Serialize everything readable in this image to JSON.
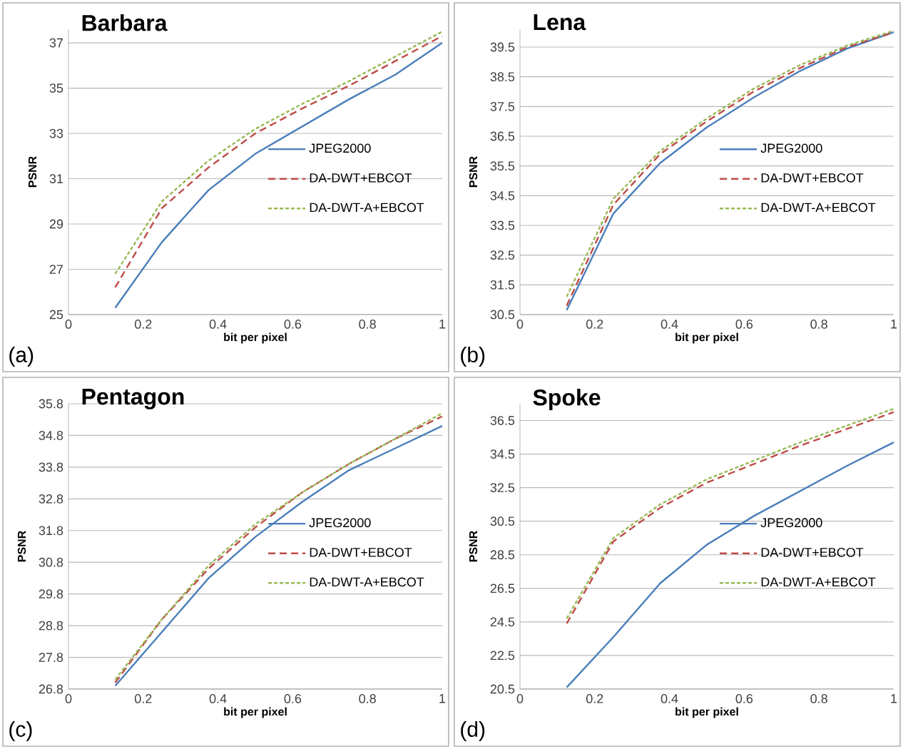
{
  "chart_data": [
    {
      "type": "line",
      "title": "Barbara",
      "xlabel": "bit per pixel",
      "ylabel": "PSNR",
      "annotations": [
        "(a)"
      ],
      "x": [
        0.125,
        0.25,
        0.375,
        0.5,
        0.625,
        0.75,
        0.875,
        1
      ],
      "xlim": [
        0,
        1
      ],
      "ylim": [
        25,
        37.6
      ],
      "xticks": [
        0,
        0.2,
        0.4,
        0.6,
        0.8,
        1
      ],
      "yticks": [
        25,
        27,
        29,
        31,
        33,
        35,
        37
      ],
      "grid": "y",
      "legend": "right",
      "series": [
        {
          "name": "JPEG2000",
          "color": "#4a7ebb",
          "line_style": "solid",
          "values": [
            25.3,
            28.2,
            30.5,
            32.1,
            33.3,
            34.5,
            35.6,
            37.0
          ]
        },
        {
          "name": "DA-DWT+EBCOT",
          "color": "#be4b48",
          "line_style": "dashed",
          "values": [
            26.2,
            29.7,
            31.5,
            33.0,
            34.1,
            35.1,
            36.2,
            37.3
          ]
        },
        {
          "name": "DA-DWT-A+EBCOT",
          "color": "#98b954",
          "line_style": "dotted",
          "values": [
            26.8,
            30.0,
            31.8,
            33.2,
            34.3,
            35.3,
            36.4,
            37.5
          ]
        }
      ]
    },
    {
      "type": "line",
      "title": "Lena",
      "xlabel": "bit per pixel",
      "ylabel": "PSNR",
      "annotations": [
        "(b)"
      ],
      "x": [
        0.125,
        0.25,
        0.375,
        0.5,
        0.625,
        0.75,
        0.875,
        1
      ],
      "xlim": [
        0,
        1
      ],
      "ylim": [
        30.5,
        40.1
      ],
      "xticks": [
        0,
        0.2,
        0.4,
        0.6,
        0.8,
        1
      ],
      "yticks": [
        30.5,
        31.5,
        32.5,
        33.5,
        34.5,
        35.5,
        36.5,
        37.5,
        38.5,
        39.5
      ],
      "grid": "y",
      "legend": "right",
      "series": [
        {
          "name": "JPEG2000",
          "color": "#4a7ebb",
          "line_style": "solid",
          "values": [
            30.65,
            33.9,
            35.6,
            36.8,
            37.8,
            38.7,
            39.45,
            40.0
          ]
        },
        {
          "name": "DA-DWT+EBCOT",
          "color": "#be4b48",
          "line_style": "dashed",
          "values": [
            30.8,
            34.2,
            35.9,
            37.0,
            38.0,
            38.8,
            39.5,
            40.0
          ]
        },
        {
          "name": "DA-DWT-A+EBCOT",
          "color": "#98b954",
          "line_style": "dotted",
          "values": [
            31.1,
            34.4,
            36.0,
            37.1,
            38.1,
            38.9,
            39.55,
            40.05
          ]
        }
      ]
    },
    {
      "type": "line",
      "title": "Pentagon",
      "xlabel": "bit per pixel",
      "ylabel": "PSNR",
      "annotations": [
        "(c)"
      ],
      "x": [
        0.125,
        0.25,
        0.375,
        0.5,
        0.625,
        0.75,
        0.875,
        1
      ],
      "xlim": [
        0,
        1
      ],
      "ylim": [
        26.8,
        35.8
      ],
      "xticks": [
        0,
        0.2,
        0.4,
        0.6,
        0.8,
        1
      ],
      "yticks": [
        26.8,
        27.8,
        28.8,
        29.8,
        30.8,
        31.8,
        32.8,
        33.8,
        34.8,
        35.8
      ],
      "grid": "y",
      "legend": "right",
      "series": [
        {
          "name": "JPEG2000",
          "color": "#4a7ebb",
          "line_style": "solid",
          "values": [
            26.9,
            28.6,
            30.3,
            31.6,
            32.7,
            33.7,
            34.4,
            35.1
          ]
        },
        {
          "name": "DA-DWT+EBCOT",
          "color": "#be4b48",
          "line_style": "dashed",
          "values": [
            27.0,
            29.0,
            30.6,
            31.9,
            33.0,
            33.9,
            34.7,
            35.4
          ]
        },
        {
          "name": "DA-DWT-A+EBCOT",
          "color": "#98b954",
          "line_style": "dotted",
          "values": [
            27.1,
            29.0,
            30.7,
            32.0,
            33.0,
            33.9,
            34.7,
            35.5
          ]
        }
      ]
    },
    {
      "type": "line",
      "title": "Spoke",
      "xlabel": "bit per pixel",
      "ylabel": "PSNR",
      "annotations": [
        "(d)"
      ],
      "x": [
        0.125,
        0.25,
        0.375,
        0.5,
        0.625,
        0.75,
        0.875,
        1
      ],
      "xlim": [
        0,
        1
      ],
      "ylim": [
        20.5,
        37.5
      ],
      "xticks": [
        0,
        0.2,
        0.4,
        0.6,
        0.8,
        1
      ],
      "yticks": [
        20.5,
        22.5,
        24.5,
        26.5,
        28.5,
        30.5,
        32.5,
        34.5,
        36.5
      ],
      "grid": "y",
      "legend": "right",
      "series": [
        {
          "name": "JPEG2000",
          "color": "#4a7ebb",
          "line_style": "solid",
          "values": [
            20.6,
            23.6,
            26.8,
            29.1,
            30.8,
            32.3,
            33.8,
            35.2
          ]
        },
        {
          "name": "DA-DWT+EBCOT",
          "color": "#be4b48",
          "line_style": "dashed",
          "values": [
            24.4,
            29.3,
            31.3,
            32.8,
            33.9,
            35.0,
            36.0,
            37.0
          ]
        },
        {
          "name": "DA-DWT-A+EBCOT",
          "color": "#98b954",
          "line_style": "dotted",
          "values": [
            24.7,
            29.5,
            31.5,
            33.0,
            34.1,
            35.2,
            36.2,
            37.2
          ]
        }
      ]
    }
  ]
}
